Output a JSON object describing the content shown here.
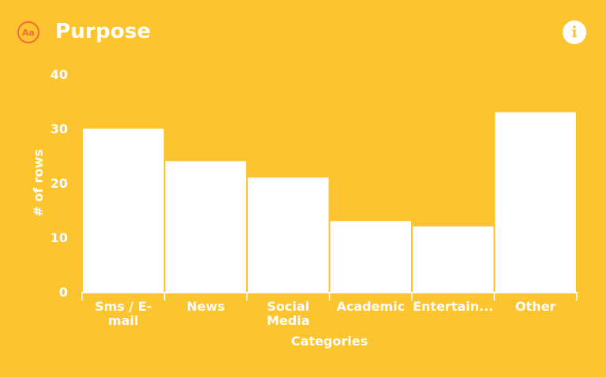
{
  "header": {
    "title": "Purpose",
    "type_icon_label": "Aa",
    "info_icon_glyph": "i"
  },
  "colors": {
    "background": "#FCC42E",
    "bar": "#FFFFFF",
    "accent": "#F26B3A"
  },
  "chart_data": {
    "type": "bar",
    "title": "Purpose",
    "xlabel": "Categories",
    "ylabel": "# of rows",
    "categories": [
      "Sms / E-mail",
      "News",
      "Social Media",
      "Academic",
      "Entertain...",
      "Other"
    ],
    "category_label_lines": [
      [
        "Sms / E-",
        "mail"
      ],
      [
        "News"
      ],
      [
        "Social",
        "Media"
      ],
      [
        "Academic"
      ],
      [
        "Entertain..."
      ],
      [
        "Other"
      ]
    ],
    "values": [
      30,
      24,
      21,
      13,
      12,
      33
    ],
    "ylim": [
      0,
      40
    ],
    "yticks": [
      0,
      10,
      20,
      30,
      40
    ],
    "grid": false,
    "legend": "none"
  }
}
